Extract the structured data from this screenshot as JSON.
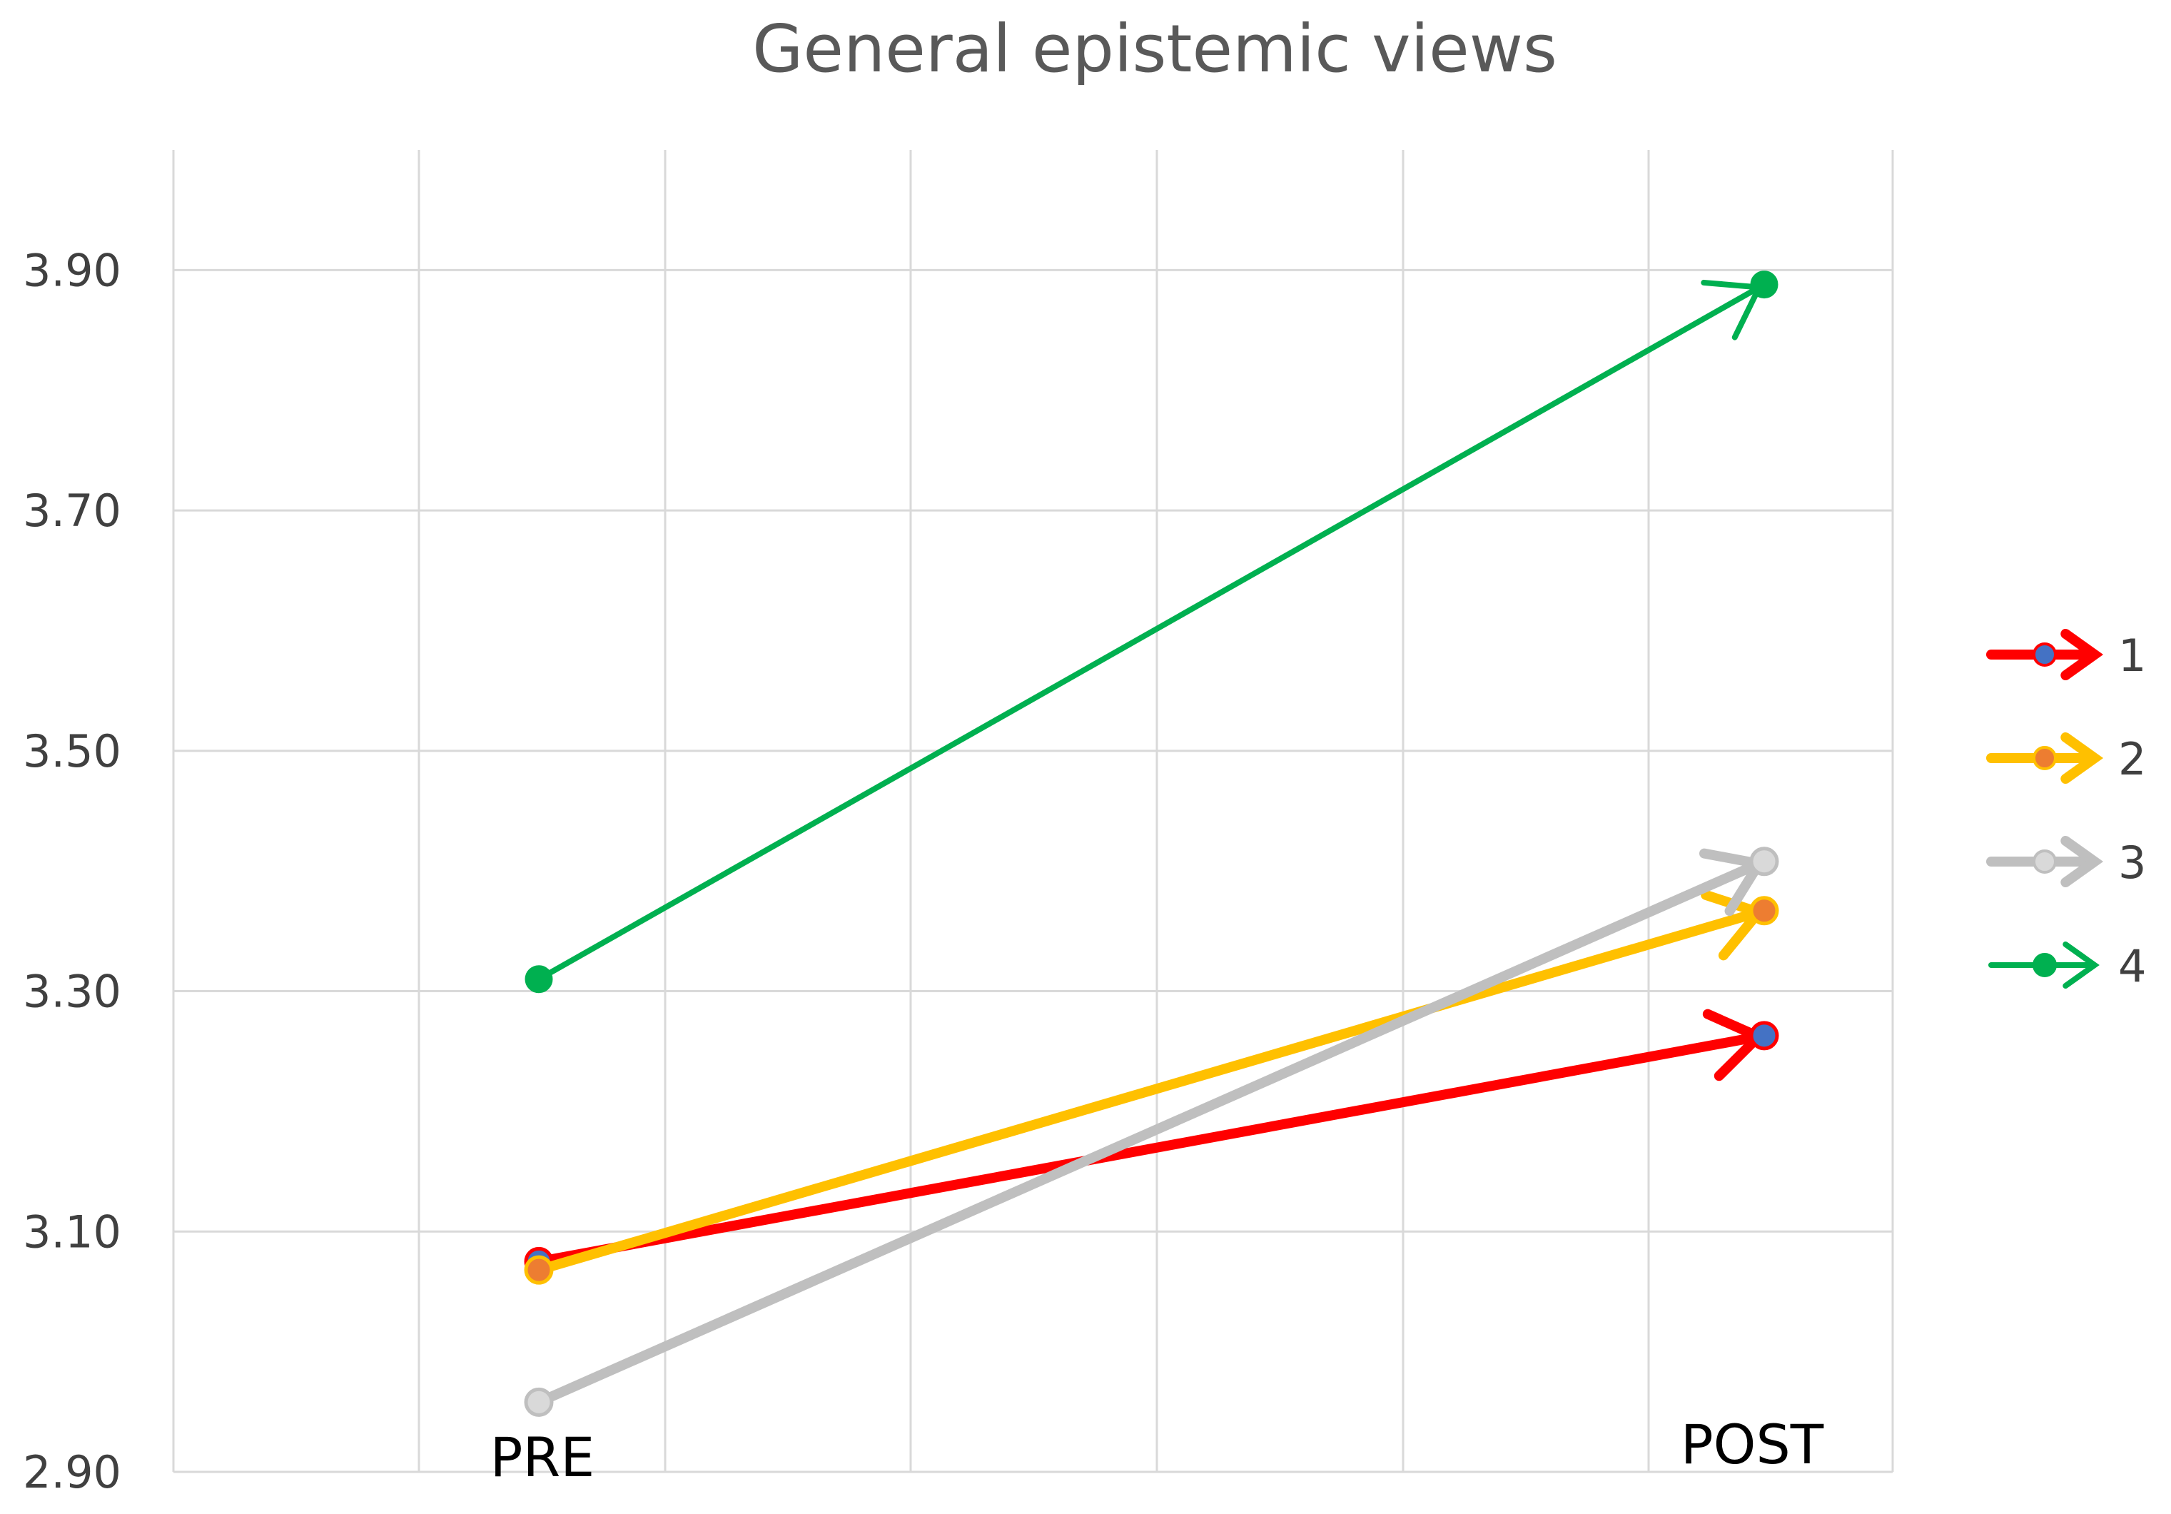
{
  "chart_data": {
    "type": "line",
    "title": "General epistemic views",
    "x": [
      "PRE",
      "POST"
    ],
    "ylim": [
      2.9,
      4.0
    ],
    "yticks": [
      "2.90",
      "3.10",
      "3.30",
      "3.50",
      "3.70",
      "3.90"
    ],
    "grid": true,
    "legend_position": "right",
    "series": [
      {
        "name": "1",
        "values": [
          3.075,
          3.263
        ],
        "color": "#ff0000",
        "marker_color": "#4472c4"
      },
      {
        "name": "2",
        "values": [
          3.068,
          3.367
        ],
        "color": "#ffc000",
        "marker_color": "#ed7d31"
      },
      {
        "name": "3",
        "values": [
          2.958,
          3.408
        ],
        "color": "#bfbfbf",
        "marker_color": "#d9d9d9"
      },
      {
        "name": "4",
        "values": [
          3.31,
          3.888
        ],
        "color": "#00b050",
        "marker_color": "#00b050"
      }
    ]
  }
}
